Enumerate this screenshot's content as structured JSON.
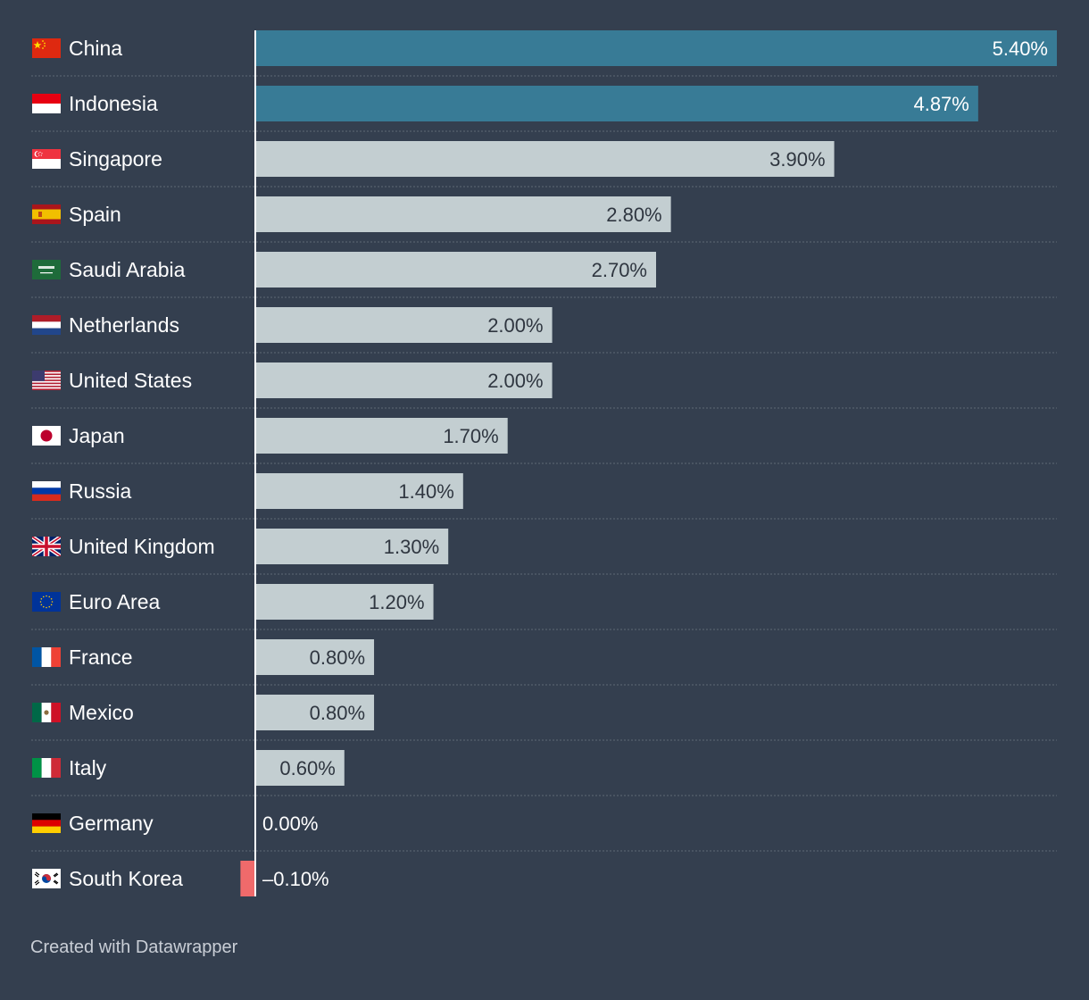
{
  "chart_data": {
    "type": "bar",
    "orientation": "horizontal",
    "categories": [
      "China",
      "Indonesia",
      "Singapore",
      "Spain",
      "Saudi Arabia",
      "Netherlands",
      "United States",
      "Japan",
      "Russia",
      "United Kingdom",
      "Euro Area",
      "France",
      "Mexico",
      "Italy",
      "Germany",
      "South Korea"
    ],
    "values": [
      5.4,
      4.87,
      3.9,
      2.8,
      2.7,
      2.0,
      2.0,
      1.7,
      1.4,
      1.3,
      1.2,
      0.8,
      0.8,
      0.6,
      0.0,
      -0.1
    ],
    "value_labels": [
      "5.40%",
      "4.87%",
      "3.90%",
      "2.80%",
      "2.70%",
      "2.00%",
      "2.00%",
      "1.70%",
      "1.40%",
      "1.30%",
      "1.20%",
      "0.80%",
      "0.80%",
      "0.60%",
      "0.00%",
      "–0.10%"
    ],
    "highlighted": [
      "China",
      "Indonesia"
    ],
    "xlim": [
      -0.1,
      5.4
    ],
    "title": "",
    "xlabel": "",
    "ylabel": "",
    "colors": {
      "highlight": "#387b96",
      "default": "#c3ced1",
      "negative": "#f06a6b",
      "background": "#343f4f",
      "gridline": "#5e6876",
      "axis": "#ffffff"
    }
  },
  "flags": [
    "china-flag-icon",
    "indonesia-flag-icon",
    "singapore-flag-icon",
    "spain-flag-icon",
    "saudi-arabia-flag-icon",
    "netherlands-flag-icon",
    "united-states-flag-icon",
    "japan-flag-icon",
    "russia-flag-icon",
    "united-kingdom-flag-icon",
    "euro-area-flag-icon",
    "france-flag-icon",
    "mexico-flag-icon",
    "italy-flag-icon",
    "germany-flag-icon",
    "south-korea-flag-icon"
  ],
  "footer": {
    "credit": "Created with Datawrapper"
  }
}
